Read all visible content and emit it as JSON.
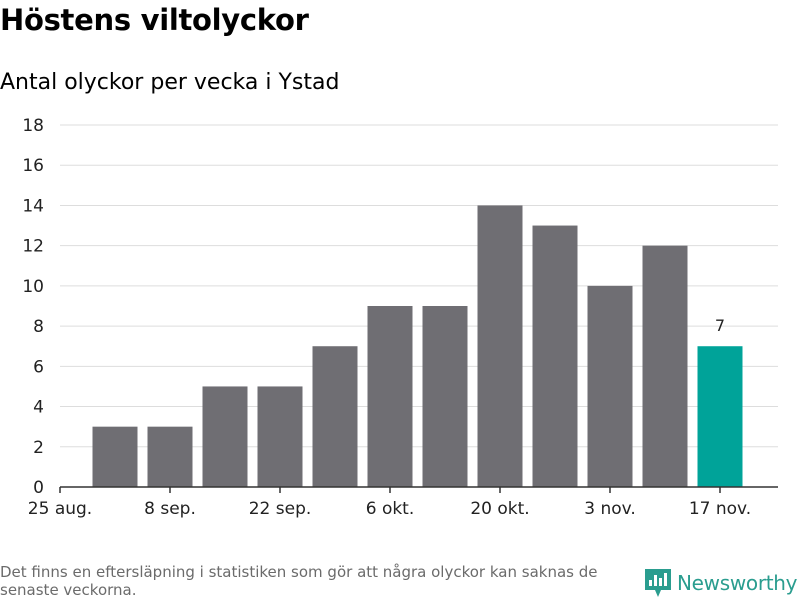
{
  "chart_data": {
    "type": "bar",
    "title": "Höstens viltolyckor",
    "subtitle": "Antal olyckor per vecka i Ystad",
    "x_tick_labels": [
      "25 aug.",
      "8 sep.",
      "22 sep.",
      "6 okt.",
      "20 okt.",
      "3 nov.",
      "17 nov."
    ],
    "series": [
      {
        "values": [
          3,
          3,
          5,
          5,
          7,
          9,
          9,
          14,
          13,
          10,
          12,
          7
        ]
      }
    ],
    "highlighted": {
      "index": 11,
      "data_label": "7"
    },
    "ylim": [
      0,
      18
    ],
    "y_ticks": [
      0,
      2,
      4,
      6,
      8,
      10,
      12,
      14,
      16,
      18
    ],
    "grid": true,
    "colors": {
      "bar": "#6f6e73",
      "highlight": "#00a399",
      "grid": "#dddddd",
      "axis": "#333333"
    }
  },
  "footer": {
    "note": "Det finns en eftersläpning i statistiken som gör att några olyckor kan saknas de senaste veckorna.",
    "brand": "Newsworthy",
    "brand_color": "#2a9d8f"
  }
}
